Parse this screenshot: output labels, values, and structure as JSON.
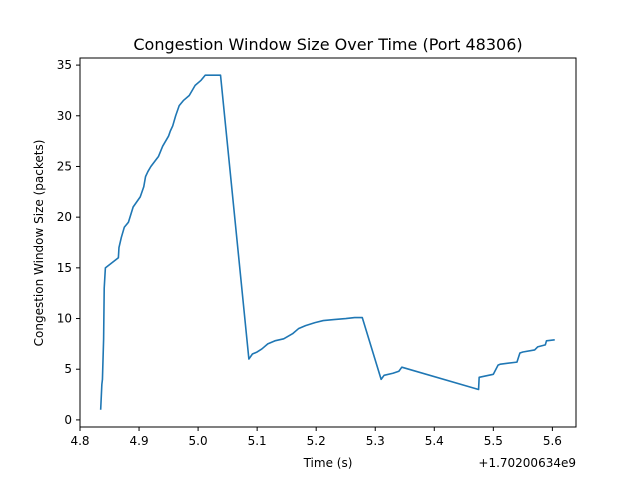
{
  "chart_data": {
    "type": "line",
    "title": "Congestion Window Size Over Time (Port 48306)",
    "xlabel": "Time (s)",
    "ylabel": "Congestion Window Size (packets)",
    "x_offset_text": "+1.70200634e9",
    "xlim": [
      4.8,
      5.64
    ],
    "ylim": [
      -0.7,
      35.7
    ],
    "xticks": [
      4.8,
      4.9,
      5.0,
      5.1,
      5.2,
      5.3,
      5.4,
      5.5,
      5.6
    ],
    "xtick_labels": [
      "4.8",
      "4.9",
      "5.0",
      "5.1",
      "5.2",
      "5.3",
      "5.4",
      "5.5",
      "5.6"
    ],
    "yticks": [
      0,
      5,
      10,
      15,
      20,
      25,
      30,
      35
    ],
    "ytick_labels": [
      "0",
      "5",
      "10",
      "15",
      "20",
      "25",
      "30",
      "35"
    ],
    "grid": false,
    "legend": "none",
    "line_color": "#1f77b4",
    "series": [
      {
        "x": [
          4.835,
          4.837,
          4.838,
          4.84,
          4.841,
          4.842,
          4.843,
          4.865,
          4.866,
          4.87,
          4.875,
          4.882,
          4.89,
          4.902,
          4.908,
          4.911,
          4.915,
          4.92,
          4.933,
          4.94,
          4.95,
          4.953,
          4.957,
          4.962,
          4.968,
          4.975,
          4.985,
          4.995,
          5.005,
          5.012,
          5.02,
          5.038,
          5.086,
          5.092,
          5.1,
          5.108,
          5.118,
          5.13,
          5.145,
          5.16,
          5.17,
          5.182,
          5.198,
          5.212,
          5.23,
          5.25,
          5.265,
          5.278,
          5.31,
          5.315,
          5.33,
          5.34,
          5.345,
          5.475,
          5.476,
          5.5,
          5.508,
          5.512,
          5.54,
          5.545,
          5.55,
          5.57,
          5.575,
          5.588,
          5.59,
          5.604
        ],
        "y": [
          1,
          3.5,
          4,
          8,
          13,
          14,
          15,
          16,
          17,
          18,
          19,
          19.5,
          21,
          22,
          23,
          24,
          24.5,
          25,
          26,
          27,
          28,
          28.5,
          29,
          30,
          31,
          31.5,
          32,
          33,
          33.5,
          34,
          34,
          34,
          6,
          6.5,
          6.7,
          7,
          7.5,
          7.8,
          8,
          8.5,
          9,
          9.3,
          9.6,
          9.8,
          9.9,
          10,
          10.1,
          10.1,
          4,
          4.4,
          4.6,
          4.8,
          5.2,
          3,
          4.2,
          4.5,
          5.4,
          5.5,
          5.7,
          6.6,
          6.7,
          6.9,
          7.2,
          7.4,
          7.8,
          7.9
        ]
      }
    ]
  }
}
